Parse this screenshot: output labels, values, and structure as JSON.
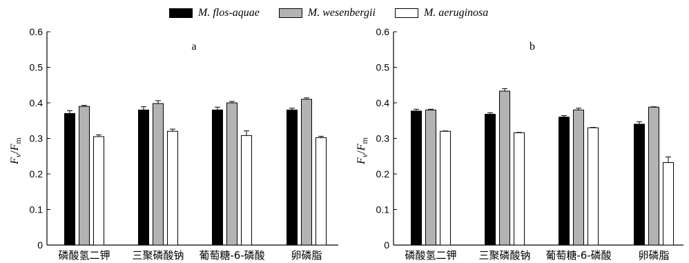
{
  "legend": [
    {
      "name": "M. flos-aquae",
      "color": "#000000"
    },
    {
      "name": "M. wesenbergii",
      "color": "#b3b3b3"
    },
    {
      "name": "M. aeruginosa",
      "color": "#ffffff"
    }
  ],
  "chart_data": [
    {
      "type": "bar",
      "panel": "a",
      "ylabel": {
        "main": "F",
        "sub1": "v",
        "slash": "/",
        "sub2": "m"
      },
      "ylim": [
        0,
        0.6
      ],
      "yticks": [
        "0",
        "0.1",
        "0.2",
        "0.3",
        "0.4",
        "0.5",
        "0.6"
      ],
      "categories": [
        "磷酸氢二钾",
        "三聚磷酸钠",
        "葡萄糖-6-磷酸",
        "卵磷脂"
      ],
      "series": [
        {
          "name": "M. flos-aquae",
          "values": [
            0.37,
            0.38,
            0.38,
            0.38
          ],
          "errors": [
            0.008,
            0.009,
            0.008,
            0.005
          ]
        },
        {
          "name": "M. wesenbergii",
          "values": [
            0.39,
            0.398,
            0.4,
            0.41
          ],
          "errors": [
            0.003,
            0.008,
            0.004,
            0.004
          ]
        },
        {
          "name": "M. aeruginosa",
          "values": [
            0.305,
            0.32,
            0.308,
            0.302
          ],
          "errors": [
            0.005,
            0.006,
            0.013,
            0.004
          ]
        }
      ]
    },
    {
      "type": "bar",
      "panel": "b",
      "ylabel": {
        "main": "F",
        "sub1": "v",
        "slash": "/",
        "sub2": "m"
      },
      "ylim": [
        0,
        0.6
      ],
      "yticks": [
        "0",
        "0.1",
        "0.2",
        "0.3",
        "0.4",
        "0.5",
        "0.6"
      ],
      "categories": [
        "磷酸氢二钾",
        "三聚磷酸钠",
        "葡萄糖-6-磷酸",
        "卵磷脂"
      ],
      "series": [
        {
          "name": "M. flos-aquae",
          "values": [
            0.377,
            0.368,
            0.36,
            0.34
          ],
          "errors": [
            0.005,
            0.004,
            0.004,
            0.007
          ]
        },
        {
          "name": "M. wesenbergii",
          "values": [
            0.38,
            0.433,
            0.38,
            0.388
          ],
          "errors": [
            0.002,
            0.007,
            0.005,
            0.001
          ]
        },
        {
          "name": "M. aeruginosa",
          "values": [
            0.32,
            0.316,
            0.33,
            0.232
          ],
          "errors": [
            0.001,
            0.001,
            0.001,
            0.016
          ]
        }
      ]
    }
  ]
}
